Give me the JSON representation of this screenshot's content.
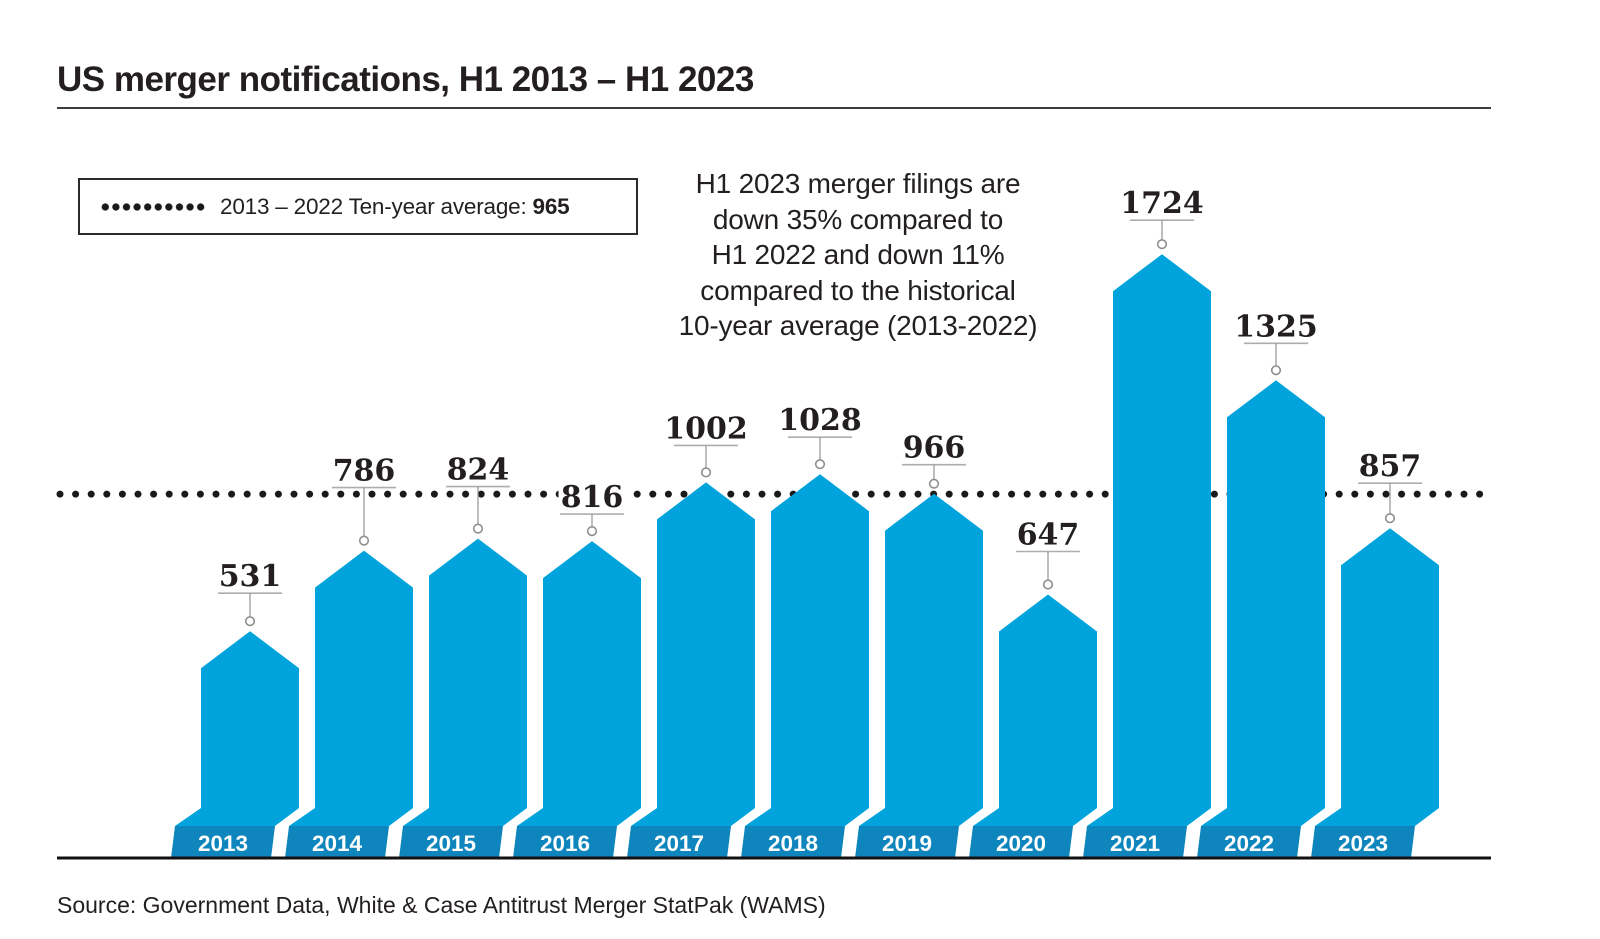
{
  "title": "US merger notifications, H1 2013 – H1 2023",
  "legend": {
    "label": "2013 – 2022 Ten-year average:",
    "value": "965"
  },
  "annotation": "H1 2023 merger filings are\ndown 35% compared to\nH1 2022 and down 11%\ncompared to the historical\n10-year average (2013-2022)",
  "source": "Source: Government Data, White & Case Antitrust Merger StatPak (WAMS)",
  "chart_data": {
    "type": "bar",
    "title": "US merger notifications, H1 2013 – H1 2023",
    "categories": [
      "2013",
      "2014",
      "2015",
      "2016",
      "2017",
      "2018",
      "2019",
      "2020",
      "2021",
      "2022",
      "2023"
    ],
    "values": [
      531,
      786,
      824,
      816,
      1002,
      1028,
      966,
      647,
      1724,
      1325,
      857
    ],
    "average_line": {
      "label": "2013 – 2022 Ten-year average",
      "value": 965,
      "style": "dotted"
    },
    "ylim": [
      0,
      1900
    ],
    "grid": false,
    "legend_position": "top-left",
    "bar_color": "#00A3DC",
    "pedestal_color": "#0E86BD",
    "year_label_color": "#FFFFFF",
    "dotted_line_color": "#1A1A1A",
    "axis_line_color": "#111111",
    "value_label_color": "#231F20",
    "connector_color": "#9B9B9B",
    "underline_color": "#ADADAD",
    "marker_stroke_color": "#8F8F8F",
    "label_offsets": [
      38,
      63,
      52,
      27,
      37,
      37,
      29,
      43,
      34,
      37,
      45
    ]
  }
}
